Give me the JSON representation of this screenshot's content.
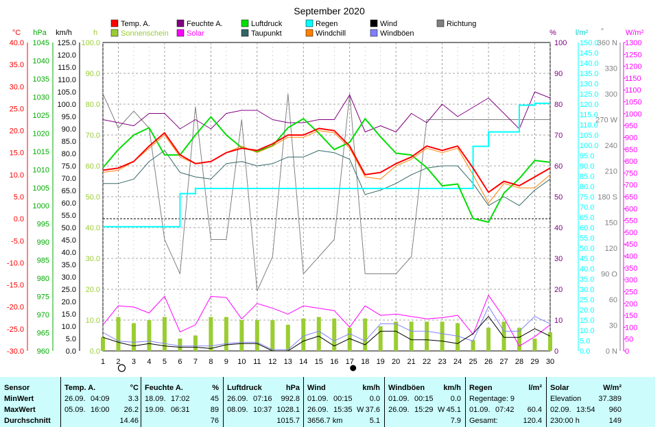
{
  "title": "September 2020",
  "units": {
    "temp": "°C",
    "hpa": "hPa",
    "kmh": "km/h",
    "h": "h",
    "pct": "%",
    "lm2": "l/m²",
    "deg": "°",
    "wm2": "W/m²"
  },
  "legend": [
    {
      "label": "Temp. A.",
      "color": "#ff0000"
    },
    {
      "label": "Feuchte A.",
      "color": "#800080"
    },
    {
      "label": "Luftdruck",
      "color": "#00e000"
    },
    {
      "label": "Regen",
      "color": "#00ffff"
    },
    {
      "label": "Wind",
      "color": "#000000"
    },
    {
      "label": "Richtung",
      "color": "#808080"
    },
    {
      "label": "Sonnenschein",
      "color": "#9acd32"
    },
    {
      "label": "Solar",
      "color": "#ff00ff"
    },
    {
      "label": "Taupunkt",
      "color": "#336666"
    },
    {
      "label": "Windchill",
      "color": "#ff8000"
    },
    {
      "label": "Windböen",
      "color": "#8080ff"
    }
  ],
  "axes": {
    "temp": {
      "labels": [
        "40.0",
        "35.0",
        "30.0",
        "25.0",
        "20.0",
        "15.0",
        "10.0",
        "5.0",
        "0.0",
        "-5.0",
        "-10.0",
        "-15.0",
        "-20.0",
        "-25.0",
        "-30.0"
      ],
      "color": "#ff0000"
    },
    "hpa": {
      "labels": [
        "1045",
        "1040",
        "1035",
        "1030",
        "1025",
        "1020",
        "1015",
        "1010",
        "1005",
        "1000",
        "995",
        "990",
        "985",
        "980",
        "975",
        "970",
        "965",
        "960"
      ],
      "color": "#00aa00"
    },
    "kmh": {
      "labels": [
        "125.0",
        "120.0",
        "115.0",
        "110.0",
        "105.0",
        "100.0",
        "95.0",
        "90.0",
        "85.0",
        "80.0",
        "75.0",
        "70.0",
        "65.0",
        "60.0",
        "55.0",
        "50.0",
        "45.0",
        "40.0",
        "35.0",
        "30.0",
        "25.0",
        "20.0",
        "15.0",
        "10.0",
        "5.0",
        "0.0"
      ],
      "color": "#000000"
    },
    "h": {
      "labels": [
        "100.0",
        "90.0",
        "80.0",
        "70.0",
        "60.0",
        "50.0",
        "40.0",
        "30.0",
        "20.0",
        "10.0",
        "0.0"
      ],
      "color": "#9acd32"
    },
    "pct": {
      "labels": [
        "100",
        "90",
        "80",
        "70",
        "60",
        "50",
        "40",
        "30",
        "20",
        "10",
        "0"
      ],
      "color": "#800080"
    },
    "rain": {
      "labels": [
        "150.0",
        "145.0",
        "140.0",
        "135.0",
        "130.0",
        "125.0",
        "120.0",
        "115.0",
        "110.0",
        "105.0",
        "100.0",
        "95.0",
        "90.0",
        "85.0",
        "80.0",
        "75.0",
        "70.0",
        "65.0",
        "60.0",
        "55.0",
        "50.0",
        "45.0",
        "40.0",
        "35.0",
        "30.0",
        "25.0",
        "20.0",
        "15.0",
        "10.0",
        "5.0",
        "0.0"
      ],
      "color": "#00ffff"
    },
    "dir": {
      "labels": [
        "360 N",
        "330",
        "300",
        "270 W",
        "240",
        "210",
        "180 S",
        "150",
        "120",
        "90 O",
        "60",
        "30",
        "0 N"
      ],
      "color": "#808080"
    },
    "solar": {
      "labels": [
        "1300",
        "1250",
        "1200",
        "1150",
        "1100",
        "1050",
        "1000",
        "950",
        "900",
        "850",
        "800",
        "750",
        "700",
        "650",
        "600",
        "550",
        "500",
        "450",
        "400",
        "350",
        "300",
        "250",
        "200",
        "150",
        "100",
        "50",
        "0"
      ],
      "color": "#ff00ff"
    },
    "x": {
      "labels": [
        "1",
        "2",
        "3",
        "4",
        "5",
        "6",
        "7",
        "8",
        "9",
        "10",
        "11",
        "12",
        "13",
        "14",
        "15",
        "16",
        "17",
        "18",
        "19",
        "20",
        "21",
        "22",
        "23",
        "24",
        "25",
        "26",
        "27",
        "28",
        "29",
        "30"
      ]
    }
  },
  "chart_data": {
    "type": "line",
    "x": [
      1,
      2,
      3,
      4,
      5,
      6,
      7,
      8,
      9,
      10,
      11,
      12,
      13,
      14,
      15,
      16,
      17,
      18,
      19,
      20,
      21,
      22,
      23,
      24,
      25,
      26,
      27,
      28,
      29,
      30
    ],
    "series": [
      {
        "name": "Temp. A.",
        "unit": "°C",
        "color": "#ff0000",
        "values": [
          11.0,
          11.5,
          13.0,
          16.5,
          19.5,
          14.5,
          12.5,
          13.0,
          15.0,
          16.0,
          15.5,
          17.0,
          19.0,
          19.0,
          20.5,
          20.0,
          16.5,
          10.0,
          10.5,
          12.5,
          14.0,
          16.5,
          15.5,
          16.5,
          11.5,
          6.0,
          8.5,
          7.5,
          9.5,
          11.5
        ]
      },
      {
        "name": "Windchill",
        "unit": "°C",
        "color": "#ff8000",
        "values": [
          10.5,
          11.0,
          13.0,
          16.0,
          19.0,
          14.0,
          12.5,
          13.0,
          15.0,
          16.5,
          15.0,
          16.5,
          18.5,
          18.5,
          20.0,
          19.5,
          16.0,
          9.5,
          9.0,
          12.0,
          13.5,
          16.0,
          15.0,
          16.0,
          10.0,
          3.5,
          8.0,
          7.0,
          7.0,
          10.0
        ]
      },
      {
        "name": "Taupunkt",
        "unit": "°C",
        "color": "#336666",
        "values": [
          8.0,
          8.0,
          9.0,
          13.0,
          15.5,
          10.5,
          9.5,
          9.0,
          12.5,
          13.0,
          12.0,
          12.5,
          14.0,
          14.0,
          15.5,
          15.0,
          13.5,
          5.5,
          6.5,
          8.0,
          10.0,
          11.5,
          12.0,
          12.0,
          8.0,
          3.0,
          5.0,
          3.0,
          6.5,
          9.0
        ]
      },
      {
        "name": "Feuchte A.",
        "unit": "%",
        "color": "#800080",
        "values": [
          75,
          74,
          73,
          77,
          77,
          72,
          75,
          72,
          77,
          78,
          78,
          75,
          74,
          74,
          75,
          75,
          83,
          71,
          73,
          71,
          77,
          74,
          80,
          76,
          79,
          82,
          77,
          72,
          84,
          82
        ]
      },
      {
        "name": "Luftdruck",
        "unit": "hPa",
        "color": "#00dd00",
        "values": [
          1010.5,
          1015.5,
          1019.5,
          1021.5,
          1014.0,
          1014.0,
          1019.5,
          1024.5,
          1019.5,
          1016.0,
          1015.0,
          1016.5,
          1021.5,
          1024.0,
          1020.0,
          1015.5,
          1017.5,
          1024.0,
          1019.0,
          1014.5,
          1014.0,
          1010.5,
          1005.5,
          1006.0,
          996.5,
          995.5,
          1003.5,
          1007.5,
          1012.5,
          1012.0
        ]
      },
      {
        "name": "Regen",
        "unit": "l/m²",
        "color": "#00ffff",
        "values": [
          60.4,
          60.4,
          60.4,
          60.4,
          60.4,
          76.5,
          79.0,
          79.0,
          79.0,
          79.0,
          79.0,
          79.0,
          79.0,
          79.0,
          79.0,
          79.0,
          79.0,
          79.0,
          79.0,
          79.0,
          79.0,
          79.0,
          79.0,
          79.0,
          99.5,
          106.5,
          106.5,
          119.5,
          120.4,
          120.4
        ]
      },
      {
        "name": "Wind",
        "unit": "km/h",
        "color": "#000000",
        "values": [
          5.5,
          3.5,
          2.0,
          3.0,
          2.0,
          1.5,
          1.5,
          1.0,
          2.5,
          3.0,
          3.0,
          0.0,
          0.0,
          4.0,
          6.0,
          2.0,
          5.0,
          2.5,
          8.0,
          8.0,
          4.5,
          4.5,
          4.0,
          3.0,
          7.0,
          14.0,
          5.5,
          5.5,
          9.0,
          6.0
        ]
      },
      {
        "name": "Windböen",
        "unit": "km/h",
        "color": "#8080ff",
        "values": [
          7.5,
          4.0,
          3.5,
          4.0,
          3.0,
          2.0,
          2.0,
          2.0,
          3.0,
          3.5,
          3.5,
          0.5,
          0.5,
          6.0,
          8.0,
          4.0,
          7.0,
          4.0,
          11.0,
          11.0,
          8.0,
          8.0,
          7.0,
          6.0,
          4.0,
          18.0,
          8.0,
          8.0,
          14.0,
          11.0
        ]
      },
      {
        "name": "Richtung",
        "unit": "°",
        "color": "#808080",
        "values": [
          300,
          260,
          280,
          260,
          130,
          90,
          285,
          130,
          130,
          270,
          70,
          110,
          300,
          90,
          110,
          130,
          300,
          90,
          90,
          90,
          110,
          270,
          270,
          270,
          270,
          270,
          270,
          270,
          270,
          270
        ]
      },
      {
        "name": "Solar",
        "unit": "W/m²",
        "color": "#ff00ff",
        "values": [
          110,
          190,
          185,
          160,
          230,
          80,
          110,
          230,
          225,
          135,
          200,
          180,
          155,
          190,
          180,
          170,
          100,
          190,
          150,
          155,
          145,
          135,
          140,
          150,
          70,
          235,
          140,
          20,
          60,
          110
        ]
      },
      {
        "name": "Sonnenschein",
        "unit": "h",
        "color": "#9acd32",
        "type": "bar",
        "values": [
          4.5,
          11.0,
          9.0,
          10.0,
          11.0,
          4.0,
          5.0,
          11.0,
          11.0,
          10.0,
          10.0,
          10.0,
          8.5,
          10.5,
          11.0,
          10.5,
          7.5,
          10.5,
          8.0,
          9.5,
          9.5,
          9.5,
          9.5,
          9.0,
          3.5,
          7.5,
          9.5,
          7.5,
          4.0,
          6.0
        ]
      }
    ],
    "markers": [
      {
        "x": 2,
        "type": "full-moon"
      },
      {
        "x": 17,
        "type": "new-moon"
      }
    ],
    "reference_line_temp": 0.0
  },
  "stats": {
    "sensor": {
      "header": "Sensor",
      "rows": [
        "MinWert",
        "MaxWert",
        "Durchschnitt"
      ]
    },
    "temp": {
      "header": "Temp. A.",
      "unit": "°C",
      "min": {
        "date": "26.09.",
        "time": "04:09",
        "value": "3.3"
      },
      "max": {
        "date": "05.09.",
        "time": "16:00",
        "value": "26.2"
      },
      "avg": "14.46"
    },
    "hum": {
      "header": "Feuchte A.",
      "unit": "%",
      "min": {
        "date": "18.09.",
        "time": "17:02",
        "value": "45"
      },
      "max": {
        "date": "19.09.",
        "time": "06:31",
        "value": "89"
      },
      "avg": "76"
    },
    "press": {
      "header": "Luftdruck",
      "unit": "hPa",
      "min": {
        "date": "26.09.",
        "time": "07:16",
        "value": "992.8"
      },
      "max": {
        "date": "08.09.",
        "time": "10:37",
        "value": "1028.1"
      },
      "avg": "1015.7"
    },
    "wind": {
      "header": "Wind",
      "unit": "km/h",
      "min": {
        "date": "01.09.",
        "time": "00:15",
        "value": "0.0"
      },
      "max": {
        "date": "26.09.",
        "time": "15:35",
        "dir": "W",
        "value": "37.6"
      },
      "avg_label": "3656.7 km",
      "avg": "5.1"
    },
    "gust": {
      "header": "Windböen",
      "unit": "km/h",
      "min": {
        "date": "01.09.",
        "time": "00:15",
        "value": "0.0"
      },
      "max": {
        "date": "26.09.",
        "time": "15:29",
        "dir": "W",
        "value": "45.1"
      },
      "avg": "7.9"
    },
    "rain": {
      "header": "Regen",
      "unit": "l/m²",
      "r1": "Regentage: 9",
      "r2_date": "01.09.",
      "r2_time": "07:42",
      "r2_value": "60.4",
      "r3_label": "Gesamt:",
      "r3_value": "120.4"
    },
    "solar": {
      "header": "Solar",
      "unit": "W/m²",
      "r1": "Elevation",
      "r1_value": "37.389",
      "r2_date": "02.09.",
      "r2_time": "13:54",
      "r2_value": "960",
      "r3_label": "230:00 h",
      "r3_value": "149"
    }
  }
}
